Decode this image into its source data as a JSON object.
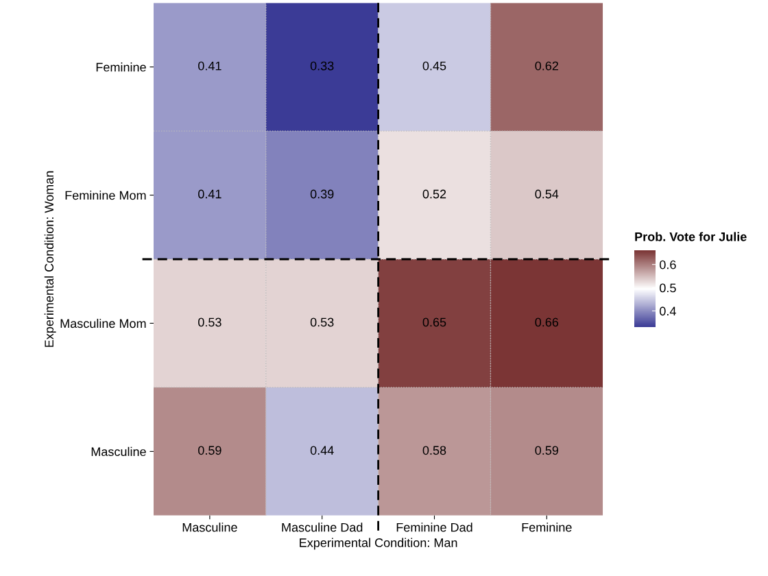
{
  "chart_data": {
    "type": "heatmap",
    "xlabel": "Experimental Condition: Man",
    "ylabel": "Experimental Condition: Woman",
    "clabel": "Prob. Vote for Julie",
    "categories": [
      "Masculine",
      "Masculine Dad",
      "Feminine Dad",
      "Feminine"
    ],
    "y_categories": [
      "Feminine",
      "Feminine Mom",
      "Masculine Mom",
      "Masculine"
    ],
    "cells": [
      [
        0.41,
        0.33,
        0.45,
        0.62
      ],
      [
        0.41,
        0.39,
        0.52,
        0.54
      ],
      [
        0.53,
        0.53,
        0.65,
        0.66
      ],
      [
        0.59,
        0.44,
        0.58,
        0.59
      ]
    ],
    "data_labels": true,
    "colors": [
      "#3b3b96",
      "#ffffff",
      "#7b3535"
    ],
    "clim": [
      0.33,
      0.66
    ],
    "cticks": [
      0.4,
      0.5,
      0.6
    ],
    "grid": true
  }
}
